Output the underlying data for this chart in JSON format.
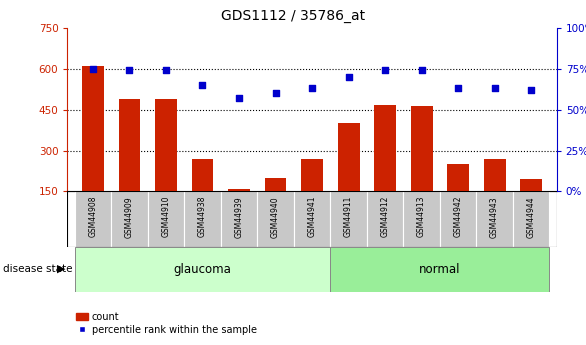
{
  "title": "GDS1112 / 35786_at",
  "samples": [
    "GSM44908",
    "GSM44909",
    "GSM44910",
    "GSM44938",
    "GSM44939",
    "GSM44940",
    "GSM44941",
    "GSM44911",
    "GSM44912",
    "GSM44913",
    "GSM44942",
    "GSM44943",
    "GSM44944"
  ],
  "counts": [
    610,
    490,
    490,
    270,
    158,
    200,
    268,
    400,
    468,
    462,
    250,
    268,
    195
  ],
  "percentiles": [
    75,
    74,
    74,
    65,
    57,
    60,
    63,
    70,
    74,
    74,
    63,
    63,
    62
  ],
  "groups": [
    "glaucoma",
    "glaucoma",
    "glaucoma",
    "glaucoma",
    "glaucoma",
    "glaucoma",
    "glaucoma",
    "normal",
    "normal",
    "normal",
    "normal",
    "normal",
    "normal"
  ],
  "glaucoma_color": "#ccffcc",
  "normal_color": "#99ee99",
  "bar_color": "#cc2200",
  "dot_color": "#0000cc",
  "ylim_left": [
    150,
    750
  ],
  "ylim_right": [
    0,
    100
  ],
  "yticks_left": [
    150,
    300,
    450,
    600,
    750
  ],
  "yticks_right": [
    0,
    25,
    50,
    75,
    100
  ],
  "grid_values": [
    300,
    450,
    600
  ],
  "background": "#ffffff",
  "label_count": "count",
  "label_percentile": "percentile rank within the sample"
}
